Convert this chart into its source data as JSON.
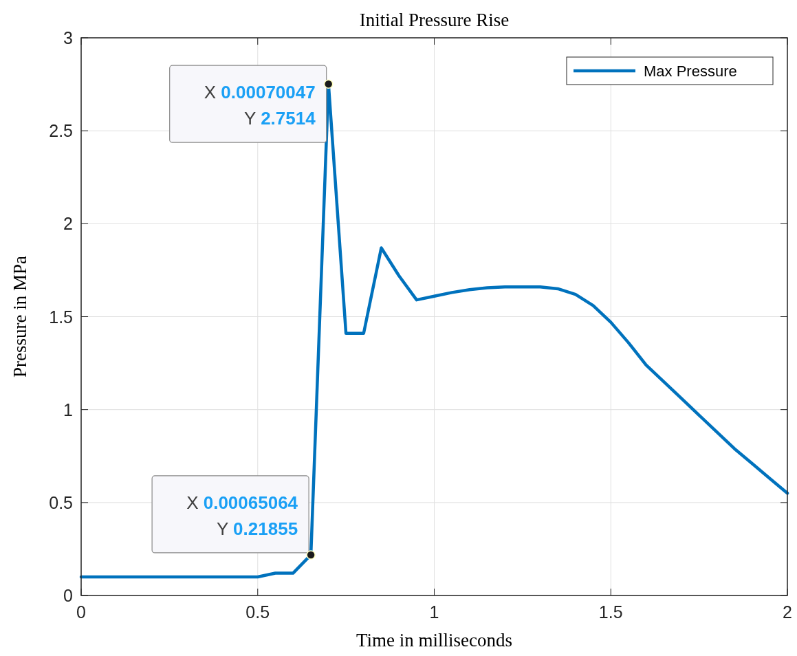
{
  "chart_data": {
    "type": "line",
    "title": "Initial Pressure Rise",
    "xlabel": "Time in milliseconds",
    "ylabel": "Pressure in MPa",
    "xlim": [
      0,
      2
    ],
    "xticks": [
      0,
      0.5,
      1,
      1.5,
      2
    ],
    "ylim": [
      0,
      3
    ],
    "yticks": [
      0,
      0.5,
      1,
      1.5,
      2,
      2.5,
      3
    ],
    "grid": true,
    "legend": "top right",
    "x": [
      0,
      0.05,
      0.1,
      0.15,
      0.2,
      0.25,
      0.3,
      0.35,
      0.4,
      0.45,
      0.5,
      0.55,
      0.6,
      0.65064,
      0.70047,
      0.75,
      0.8,
      0.85,
      0.9,
      0.95,
      1.0,
      1.05,
      1.1,
      1.15,
      1.2,
      1.25,
      1.3,
      1.35,
      1.4,
      1.45,
      1.5,
      1.55,
      1.6,
      1.65,
      1.7,
      1.75,
      1.8,
      1.85,
      1.9,
      1.95,
      2.0
    ],
    "series": [
      {
        "name": "Max Pressure",
        "color": "#0072bd",
        "values": [
          0.1,
          0.1,
          0.1,
          0.1,
          0.1,
          0.1,
          0.1,
          0.1,
          0.1,
          0.1,
          0.1,
          0.12,
          0.12,
          0.21855,
          2.7514,
          1.41,
          1.41,
          1.87,
          1.72,
          1.59,
          1.61,
          1.63,
          1.645,
          1.655,
          1.66,
          1.66,
          1.66,
          1.65,
          1.62,
          1.56,
          1.47,
          1.36,
          1.24,
          1.15,
          1.06,
          0.97,
          0.88,
          0.79,
          0.71,
          0.63,
          0.55
        ]
      }
    ],
    "annotations": [
      {
        "text": "X 0.00070047\nY 2.7514",
        "x": 0.70047,
        "y": 2.7514
      },
      {
        "text": "X 0.00065064\nY 0.21855",
        "x": 0.65064,
        "y": 0.21855
      }
    ]
  }
}
